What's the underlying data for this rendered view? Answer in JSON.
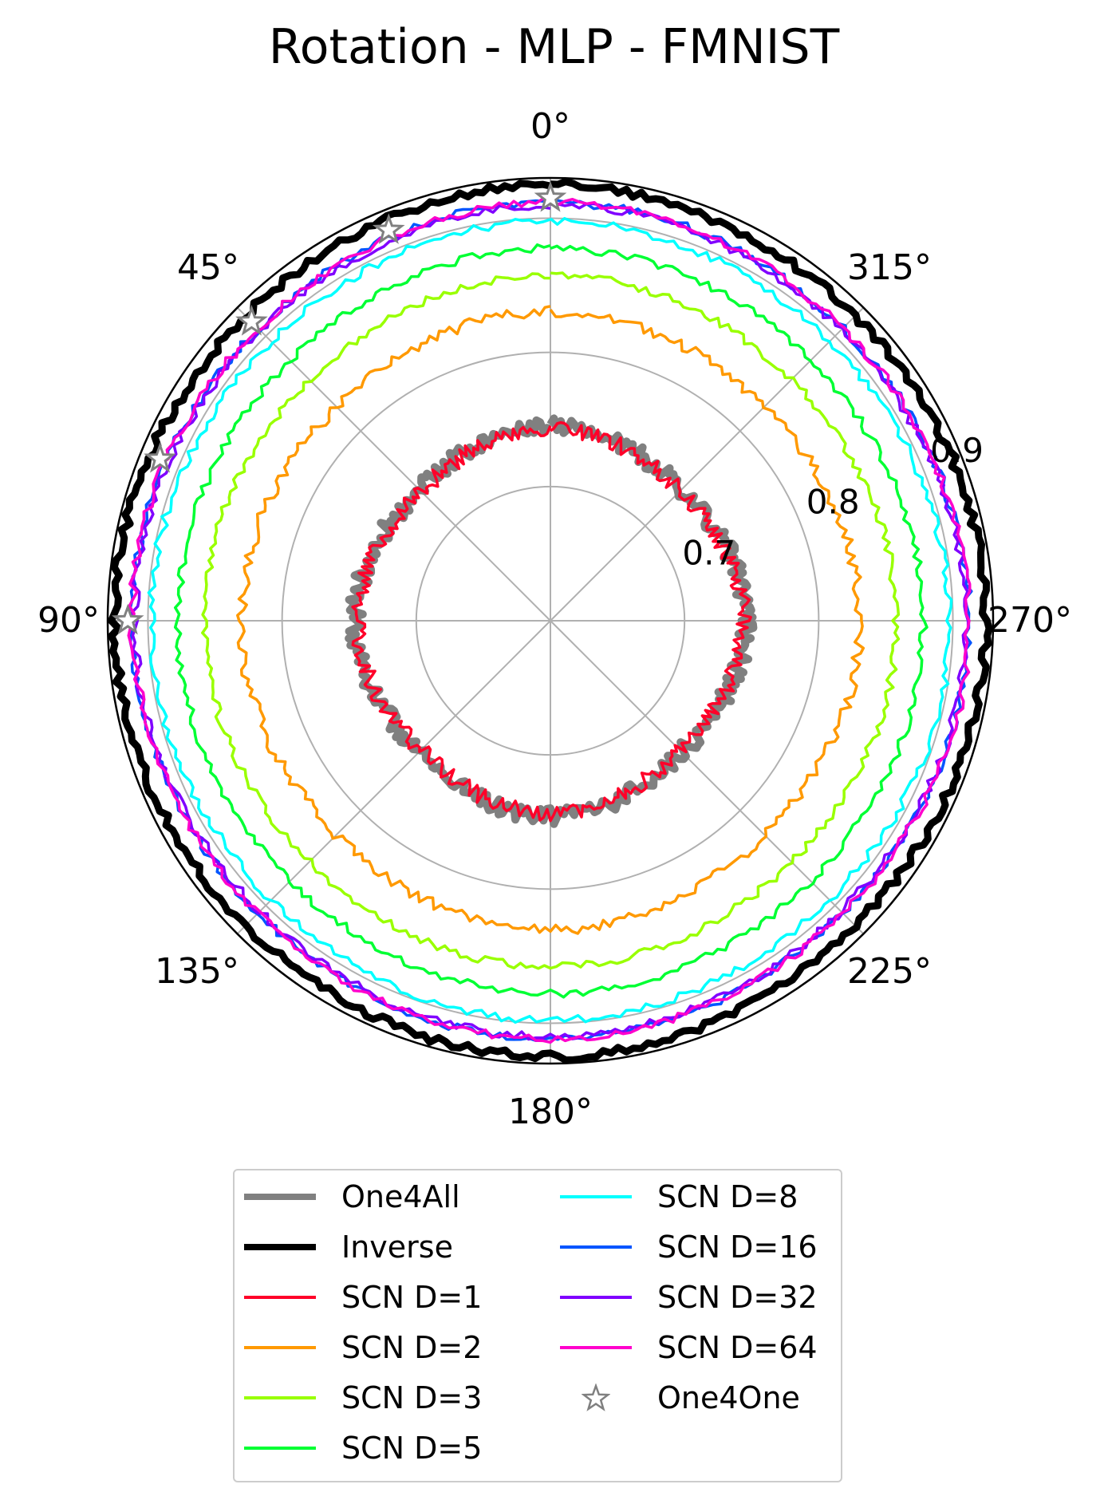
{
  "chart_data": {
    "type": "polar-line",
    "title": "Rotation - MLP - FMNIST",
    "theta_direction": "clockwise",
    "theta_ticks": [
      "0°",
      "45°",
      "90°",
      "135°",
      "180°",
      "225°",
      "270°",
      "315°"
    ],
    "r_tick_labels": [
      "0.7",
      "0.8",
      "0.9"
    ],
    "rlim": [
      0.6,
      0.93
    ],
    "legend": {
      "placement": "bottom-center",
      "columns": 2
    },
    "series": [
      {
        "name": "One4All",
        "color": "#808080",
        "kind": "line",
        "weight": "thick",
        "mean": 0.742,
        "jitter": 0.006,
        "seed": 11
      },
      {
        "name": "Inverse",
        "color": "#000000",
        "kind": "line",
        "weight": "thick",
        "mean": 0.923,
        "jitter": 0.003,
        "seed": 23
      },
      {
        "name": "SCN D=1",
        "color": "#ff0029",
        "kind": "line",
        "weight": "normal",
        "mean": 0.74,
        "jitter": 0.006,
        "seed": 37
      },
      {
        "name": "SCN D=2",
        "color": "#ff9900",
        "kind": "line",
        "weight": "normal",
        "mean": 0.828,
        "jitter": 0.004,
        "seed": 41
      },
      {
        "name": "SCN D=3",
        "color": "#99ff00",
        "kind": "line",
        "weight": "normal",
        "mean": 0.856,
        "jitter": 0.003,
        "seed": 53
      },
      {
        "name": "SCN D=5",
        "color": "#00ff33",
        "kind": "line",
        "weight": "normal",
        "mean": 0.876,
        "jitter": 0.003,
        "seed": 61
      },
      {
        "name": "SCN D=8",
        "color": "#00ffff",
        "kind": "line",
        "weight": "normal",
        "mean": 0.896,
        "jitter": 0.003,
        "seed": 71
      },
      {
        "name": "SCN D=16",
        "color": "#0055ff",
        "kind": "line",
        "weight": "normal",
        "mean": 0.91,
        "jitter": 0.003,
        "seed": 83
      },
      {
        "name": "SCN D=32",
        "color": "#8000ff",
        "kind": "line",
        "weight": "normal",
        "mean": 0.908,
        "jitter": 0.003,
        "seed": 97
      },
      {
        "name": "SCN D=64",
        "color": "#ff00cc",
        "kind": "line",
        "weight": "normal",
        "mean": 0.91,
        "jitter": 0.003,
        "seed": 101
      },
      {
        "name": "One4One",
        "color": "#808080",
        "kind": "marker",
        "marker": "star",
        "points": [
          {
            "theta": 0,
            "r": 0.915
          },
          {
            "theta": 22.5,
            "r": 0.915
          },
          {
            "theta": 45,
            "r": 0.915
          },
          {
            "theta": 67.5,
            "r": 0.915
          },
          {
            "theta": 90,
            "r": 0.915
          }
        ]
      }
    ]
  }
}
